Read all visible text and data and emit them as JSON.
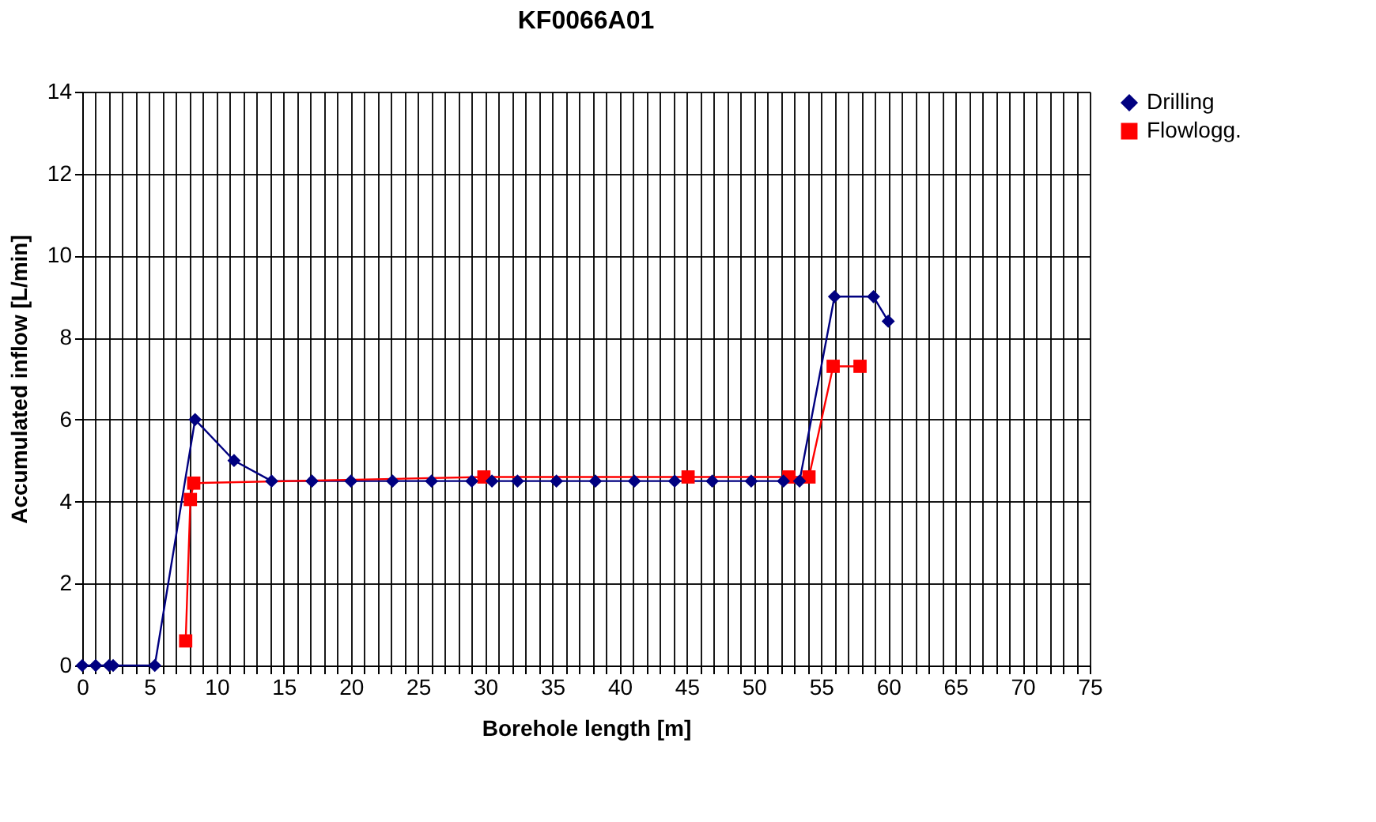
{
  "chart_data": {
    "type": "line",
    "title": "KF0066A01",
    "xlabel": "Borehole length [m]",
    "ylabel": "Accumulated inflow [L/min]",
    "series": [
      {
        "name": "Drilling",
        "color": "#000080",
        "marker": "diamond",
        "x": [
          0,
          1,
          2,
          2.3,
          5.4,
          8.4,
          11.3,
          14.1,
          17.1,
          20,
          23.1,
          26,
          29,
          30.5,
          32.4,
          35.3,
          38.2,
          41.1,
          44.1,
          46.9,
          49.8,
          52.2,
          53.4,
          56,
          58.9,
          60
        ],
        "values": [
          0,
          0,
          0,
          0,
          0,
          6,
          5,
          4.5,
          4.5,
          4.5,
          4.5,
          4.5,
          4.5,
          4.5,
          4.5,
          4.5,
          4.5,
          4.5,
          4.5,
          4.5,
          4.5,
          4.5,
          4.5,
          9,
          9,
          8.4
        ]
      },
      {
        "name": "Flowlogg.",
        "color": "#ff0000",
        "marker": "square",
        "x": [
          7.7,
          8.05,
          8.3,
          29.9,
          45.1,
          52.6,
          54.1,
          55.9,
          57.9
        ],
        "values": [
          0.6,
          4.05,
          4.45,
          4.6,
          4.6,
          4.6,
          4.6,
          7.3,
          7.3
        ]
      }
    ],
    "xlim": [
      0,
      75
    ],
    "xticks": [
      0,
      {
        "value": 1,
        "label": null
      },
      {
        "value": 2,
        "label": null
      },
      {
        "value": 3,
        "label": null
      },
      {
        "value": 4,
        "label": null
      },
      5,
      {
        "value": 6,
        "label": null
      },
      {
        "value": 7,
        "label": null
      },
      {
        "value": 8,
        "label": null
      },
      {
        "value": 9,
        "label": null
      },
      10,
      {
        "value": 11,
        "label": null
      },
      {
        "value": 12,
        "label": null
      },
      {
        "value": 13,
        "label": null
      },
      {
        "value": 14,
        "label": null
      },
      15,
      {
        "value": 16,
        "label": null
      },
      {
        "value": 17,
        "label": null
      },
      {
        "value": 18,
        "label": null
      },
      {
        "value": 19,
        "label": null
      },
      20,
      {
        "value": 21,
        "label": null
      },
      {
        "value": 22,
        "label": null
      },
      {
        "value": 23,
        "label": null
      },
      {
        "value": 24,
        "label": null
      },
      25,
      {
        "value": 26,
        "label": null
      },
      {
        "value": 27,
        "label": null
      },
      {
        "value": 28,
        "label": null
      },
      {
        "value": 29,
        "label": null
      },
      30,
      {
        "value": 31,
        "label": null
      },
      {
        "value": 32,
        "label": null
      },
      {
        "value": 33,
        "label": null
      },
      {
        "value": 34,
        "label": null
      },
      35,
      {
        "value": 36,
        "label": null
      },
      {
        "value": 37,
        "label": null
      },
      {
        "value": 38,
        "label": null
      },
      {
        "value": 39,
        "label": null
      },
      40,
      {
        "value": 41,
        "label": null
      },
      {
        "value": 42,
        "label": null
      },
      {
        "value": 43,
        "label": null
      },
      {
        "value": 44,
        "label": null
      },
      45,
      {
        "value": 46,
        "label": null
      },
      {
        "value": 47,
        "label": null
      },
      {
        "value": 48,
        "label": null
      },
      {
        "value": 49,
        "label": null
      },
      50,
      {
        "value": 51,
        "label": null
      },
      {
        "value": 52,
        "label": null
      },
      {
        "value": 53,
        "label": null
      },
      {
        "value": 54,
        "label": null
      },
      55,
      {
        "value": 56,
        "label": null
      },
      {
        "value": 57,
        "label": null
      },
      {
        "value": 58,
        "label": null
      },
      {
        "value": 59,
        "label": null
      },
      60,
      {
        "value": 61,
        "label": null
      },
      {
        "value": 62,
        "label": null
      },
      {
        "value": 63,
        "label": null
      },
      {
        "value": 64,
        "label": null
      },
      65,
      {
        "value": 66,
        "label": null
      },
      {
        "value": 67,
        "label": null
      },
      {
        "value": 68,
        "label": null
      },
      {
        "value": 69,
        "label": null
      },
      70,
      {
        "value": 71,
        "label": null
      },
      {
        "value": 72,
        "label": null
      },
      {
        "value": 73,
        "label": null
      },
      {
        "value": 74,
        "label": null
      },
      75
    ],
    "ylim": [
      0,
      14
    ],
    "yticks": [
      0,
      2,
      4,
      6,
      8,
      10,
      12,
      14
    ],
    "grid": true,
    "legend": "right",
    "line_style": "solid"
  }
}
